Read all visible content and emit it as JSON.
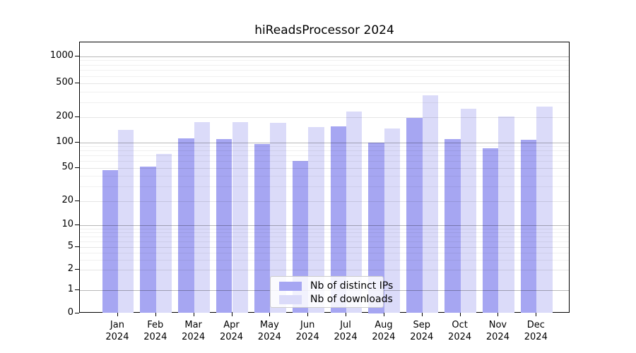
{
  "title": "hiReadsProcessor 2024",
  "chart_data": {
    "type": "bar",
    "title": "hiReadsProcessor 2024",
    "categories": [
      "Jan",
      "Feb",
      "Mar",
      "Apr",
      "May",
      "Jun",
      "Jul",
      "Aug",
      "Sep",
      "Oct",
      "Nov",
      "Dec"
    ],
    "x_tick_year": "2024",
    "series": [
      {
        "name": "Nb of distinct IPs",
        "color": "#a6a6f2",
        "values": [
          47,
          51,
          111,
          110,
          95,
          60,
          155,
          100,
          198,
          110,
          85,
          107
        ]
      },
      {
        "name": "Nb of downloads",
        "color": "#dbdbf9",
        "values": [
          140,
          73,
          173,
          174,
          172,
          152,
          235,
          146,
          360,
          251,
          202,
          265
        ]
      }
    ],
    "y_ticks": [
      0,
      1,
      2,
      5,
      10,
      20,
      50,
      100,
      200,
      500,
      1000
    ],
    "ylim": [
      0,
      1000
    ],
    "y_scale": "log-like with zero baseline",
    "grid": true,
    "legend_position": "lower center inside plot"
  }
}
